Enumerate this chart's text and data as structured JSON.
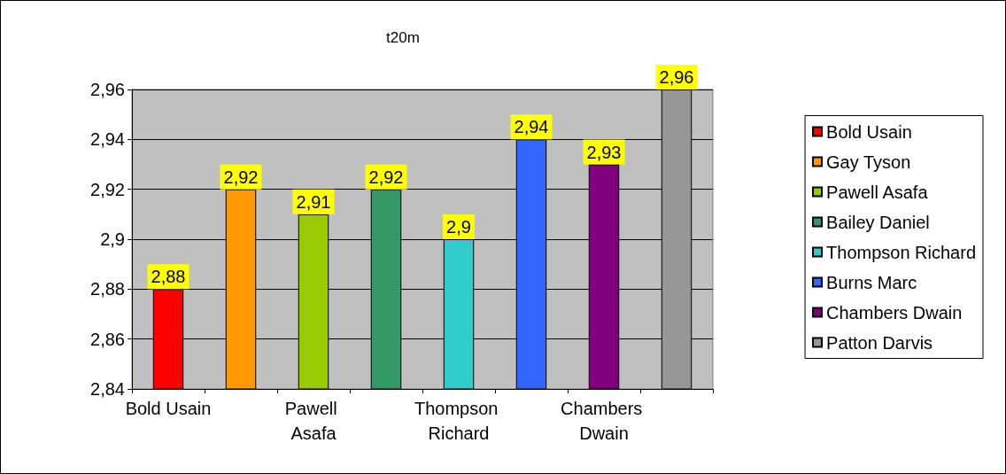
{
  "chart_data": {
    "type": "bar",
    "title": "t20m",
    "stacked": true,
    "categories": [
      "Bold Usain",
      null,
      "Pawell Asafa",
      null,
      "Thompson Richard",
      null,
      "Chambers Dwain",
      null
    ],
    "series": [
      {
        "name": "Bold Usain",
        "color": "#ff0000",
        "values": [
          2.88,
          null,
          null,
          null,
          null,
          null,
          null,
          null
        ],
        "value_labels": [
          "2,88",
          null,
          null,
          null,
          null,
          null,
          null,
          null
        ]
      },
      {
        "name": "Gay Tyson",
        "color": "#ff9900",
        "values": [
          null,
          2.92,
          null,
          null,
          null,
          null,
          null,
          null
        ],
        "value_labels": [
          null,
          "2,92",
          null,
          null,
          null,
          null,
          null,
          null
        ]
      },
      {
        "name": "Pawell Asafa",
        "color": "#99cc00",
        "values": [
          null,
          null,
          2.91,
          null,
          null,
          null,
          null,
          null
        ],
        "value_labels": [
          null,
          null,
          "2,91",
          null,
          null,
          null,
          null,
          null
        ]
      },
      {
        "name": "Bailey Daniel",
        "color": "#339966",
        "values": [
          null,
          null,
          null,
          2.92,
          null,
          null,
          null,
          null
        ],
        "value_labels": [
          null,
          null,
          null,
          "2,92",
          null,
          null,
          null,
          null
        ]
      },
      {
        "name": "Thompson Richard",
        "color": "#33cccc",
        "values": [
          null,
          null,
          null,
          null,
          2.9,
          null,
          null,
          null
        ],
        "value_labels": [
          null,
          null,
          null,
          null,
          "2,9",
          null,
          null,
          null
        ]
      },
      {
        "name": "Burns Marc",
        "color": "#3366ff",
        "values": [
          null,
          null,
          null,
          null,
          null,
          2.94,
          null,
          null
        ],
        "value_labels": [
          null,
          null,
          null,
          null,
          null,
          "2,94",
          null,
          null
        ]
      },
      {
        "name": "Chambers Dwain",
        "color": "#800080",
        "values": [
          null,
          null,
          null,
          null,
          null,
          null,
          2.93,
          null
        ],
        "value_labels": [
          null,
          null,
          null,
          null,
          null,
          null,
          "2,93",
          null
        ]
      },
      {
        "name": "Patton Darvis",
        "color": "#969696",
        "values": [
          null,
          null,
          null,
          null,
          null,
          null,
          null,
          2.96
        ],
        "value_labels": [
          null,
          null,
          null,
          null,
          null,
          null,
          null,
          "2,96"
        ]
      }
    ],
    "ylim": [
      2.84,
      2.96
    ],
    "yticks": [
      {
        "value": 2.84,
        "label": "2,84"
      },
      {
        "value": 2.86,
        "label": "2,86"
      },
      {
        "value": 2.88,
        "label": "2,88"
      },
      {
        "value": 2.9,
        "label": "2,9"
      },
      {
        "value": 2.92,
        "label": "2,92"
      },
      {
        "value": 2.94,
        "label": "2,94"
      },
      {
        "value": 2.96,
        "label": "2,96"
      }
    ],
    "grid": "y",
    "legend": "right"
  }
}
